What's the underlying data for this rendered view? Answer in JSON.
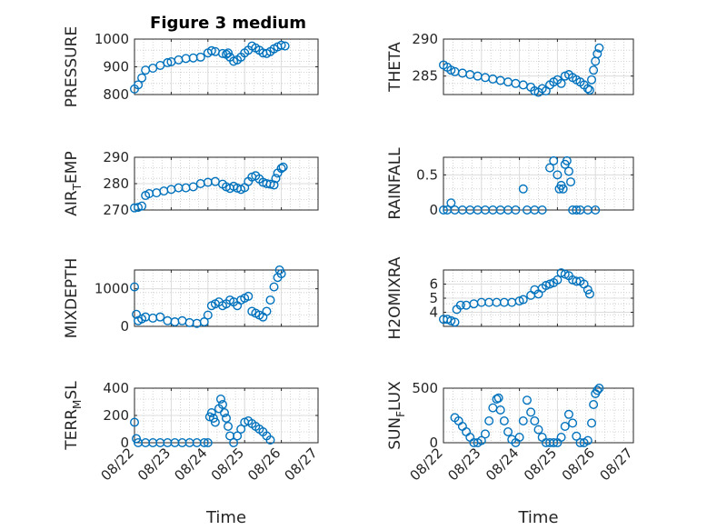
{
  "figure_title": "Figure 3 medium",
  "chart_data": [
    {
      "type": "scatter",
      "id": "pressure",
      "title": "Figure 3 medium",
      "ylabel": "PRESSURE",
      "ylim": [
        800,
        1000
      ],
      "yticks": [
        800,
        900,
        1000
      ],
      "xlim": [
        0,
        5
      ],
      "xtick_labels": [],
      "xlabel": "",
      "grid": true,
      "marker_color": "#0072BD",
      "points": [
        [
          0,
          820
        ],
        [
          0.1,
          835
        ],
        [
          0.2,
          860
        ],
        [
          0.3,
          888
        ],
        [
          0.5,
          895
        ],
        [
          0.7,
          905
        ],
        [
          0.9,
          915
        ],
        [
          1.0,
          918
        ],
        [
          1.2,
          925
        ],
        [
          1.4,
          930
        ],
        [
          1.6,
          932
        ],
        [
          1.8,
          935
        ],
        [
          2.0,
          950
        ],
        [
          2.1,
          958
        ],
        [
          2.2,
          955
        ],
        [
          2.4,
          948
        ],
        [
          2.5,
          945
        ],
        [
          2.55,
          950
        ],
        [
          2.6,
          935
        ],
        [
          2.7,
          920
        ],
        [
          2.8,
          925
        ],
        [
          2.9,
          935
        ],
        [
          3.0,
          950
        ],
        [
          3.1,
          960
        ],
        [
          3.2,
          975
        ],
        [
          3.3,
          968
        ],
        [
          3.4,
          960
        ],
        [
          3.5,
          950
        ],
        [
          3.6,
          948
        ],
        [
          3.7,
          955
        ],
        [
          3.8,
          965
        ],
        [
          3.9,
          972
        ],
        [
          4.0,
          978
        ],
        [
          4.1,
          975
        ]
      ]
    },
    {
      "type": "scatter",
      "id": "theta",
      "title": "",
      "ylabel": "THETA",
      "ylim": [
        282.5,
        290
      ],
      "yticks": [
        285,
        290
      ],
      "xlim": [
        0,
        5
      ],
      "xtick_labels": [],
      "xlabel": "",
      "grid": true,
      "marker_color": "#0072BD",
      "points": [
        [
          0,
          286.5
        ],
        [
          0.1,
          286.2
        ],
        [
          0.2,
          285.8
        ],
        [
          0.3,
          285.6
        ],
        [
          0.5,
          285.4
        ],
        [
          0.7,
          285.2
        ],
        [
          0.9,
          285.0
        ],
        [
          1.1,
          284.8
        ],
        [
          1.3,
          284.6
        ],
        [
          1.5,
          284.4
        ],
        [
          1.7,
          284.2
        ],
        [
          1.9,
          284.0
        ],
        [
          2.1,
          283.8
        ],
        [
          2.3,
          283.5
        ],
        [
          2.4,
          283.0
        ],
        [
          2.5,
          282.8
        ],
        [
          2.6,
          283.3
        ],
        [
          2.7,
          283.0
        ],
        [
          2.8,
          283.8
        ],
        [
          2.9,
          284.2
        ],
        [
          3.0,
          284.5
        ],
        [
          3.1,
          284.0
        ],
        [
          3.2,
          285.0
        ],
        [
          3.3,
          285.2
        ],
        [
          3.4,
          284.8
        ],
        [
          3.5,
          284.5
        ],
        [
          3.6,
          284.2
        ],
        [
          3.7,
          283.8
        ],
        [
          3.8,
          283.3
        ],
        [
          3.85,
          283.1
        ],
        [
          3.9,
          284.5
        ],
        [
          3.95,
          285.8
        ],
        [
          4.0,
          287.0
        ],
        [
          4.05,
          288.0
        ],
        [
          4.1,
          288.8
        ]
      ]
    },
    {
      "type": "scatter",
      "id": "airtemp",
      "title": "",
      "ylabel": "AIR",
      "ylabel_sub": "T",
      "ylabel_rest": "EMP",
      "ylim": [
        270,
        290
      ],
      "yticks": [
        270,
        280,
        290
      ],
      "xlim": [
        0,
        5
      ],
      "xtick_labels": [],
      "xlabel": "",
      "grid": true,
      "marker_color": "#0072BD",
      "points": [
        [
          0,
          270.8
        ],
        [
          0.1,
          271.0
        ],
        [
          0.2,
          271.5
        ],
        [
          0.3,
          275.5
        ],
        [
          0.4,
          276.2
        ],
        [
          0.6,
          276.5
        ],
        [
          0.8,
          277.2
        ],
        [
          1.0,
          277.8
        ],
        [
          1.2,
          278.4
        ],
        [
          1.4,
          278.4
        ],
        [
          1.6,
          278.8
        ],
        [
          1.8,
          280.0
        ],
        [
          2.0,
          280.5
        ],
        [
          2.2,
          280.8
        ],
        [
          2.4,
          279.8
        ],
        [
          2.5,
          278.8
        ],
        [
          2.6,
          278.2
        ],
        [
          2.7,
          279.0
        ],
        [
          2.8,
          278.3
        ],
        [
          2.9,
          277.8
        ],
        [
          3.0,
          278.5
        ],
        [
          3.1,
          280.8
        ],
        [
          3.2,
          282.5
        ],
        [
          3.3,
          283.0
        ],
        [
          3.4,
          281.8
        ],
        [
          3.5,
          280.5
        ],
        [
          3.6,
          280.0
        ],
        [
          3.7,
          279.8
        ],
        [
          3.8,
          279.5
        ],
        [
          3.85,
          282.0
        ],
        [
          3.9,
          284.0
        ],
        [
          4.0,
          285.8
        ],
        [
          4.05,
          286.3
        ]
      ]
    },
    {
      "type": "scatter",
      "id": "rainfall",
      "title": "",
      "ylabel": "RAINFALL",
      "ylim": [
        0,
        0.75
      ],
      "yticks": [
        0,
        0.5
      ],
      "xlim": [
        0,
        5
      ],
      "xtick_labels": [],
      "xlabel": "",
      "grid": true,
      "marker_color": "#0072BD",
      "points": [
        [
          0,
          0
        ],
        [
          0.1,
          0
        ],
        [
          0.2,
          0.1
        ],
        [
          0.3,
          0
        ],
        [
          0.5,
          0
        ],
        [
          0.7,
          0
        ],
        [
          0.9,
          0
        ],
        [
          1.1,
          0
        ],
        [
          1.3,
          0
        ],
        [
          1.5,
          0
        ],
        [
          1.7,
          0
        ],
        [
          1.9,
          0
        ],
        [
          2.1,
          0.3
        ],
        [
          2.2,
          0
        ],
        [
          2.4,
          0
        ],
        [
          2.6,
          0
        ],
        [
          2.8,
          0.6
        ],
        [
          2.9,
          0.7
        ],
        [
          3.0,
          0.5
        ],
        [
          3.05,
          0.3
        ],
        [
          3.1,
          0.35
        ],
        [
          3.15,
          0.3
        ],
        [
          3.2,
          0.65
        ],
        [
          3.25,
          0.7
        ],
        [
          3.3,
          0.55
        ],
        [
          3.35,
          0.4
        ],
        [
          3.4,
          0
        ],
        [
          3.5,
          0
        ],
        [
          3.6,
          0
        ],
        [
          3.8,
          0
        ],
        [
          4.0,
          0
        ]
      ]
    },
    {
      "type": "scatter",
      "id": "mixdepth",
      "title": "",
      "ylabel": "MIXDEPTH",
      "ylim": [
        0,
        1500
      ],
      "yticks": [
        0,
        1000
      ],
      "xlim": [
        0,
        5
      ],
      "xtick_labels": [],
      "xlabel": "",
      "grid": true,
      "marker_color": "#0072BD",
      "points": [
        [
          0,
          1050
        ],
        [
          0.05,
          320
        ],
        [
          0.1,
          150
        ],
        [
          0.2,
          200
        ],
        [
          0.3,
          250
        ],
        [
          0.5,
          220
        ],
        [
          0.7,
          250
        ],
        [
          0.9,
          150
        ],
        [
          1.1,
          120
        ],
        [
          1.3,
          150
        ],
        [
          1.5,
          100
        ],
        [
          1.7,
          80
        ],
        [
          1.9,
          120
        ],
        [
          2.0,
          300
        ],
        [
          2.1,
          550
        ],
        [
          2.2,
          600
        ],
        [
          2.3,
          650
        ],
        [
          2.4,
          550
        ],
        [
          2.5,
          600
        ],
        [
          2.6,
          700
        ],
        [
          2.7,
          650
        ],
        [
          2.8,
          550
        ],
        [
          2.9,
          700
        ],
        [
          3.0,
          750
        ],
        [
          3.1,
          800
        ],
        [
          3.2,
          400
        ],
        [
          3.3,
          350
        ],
        [
          3.4,
          300
        ],
        [
          3.5,
          250
        ],
        [
          3.6,
          400
        ],
        [
          3.7,
          700
        ],
        [
          3.8,
          1050
        ],
        [
          3.9,
          1300
        ],
        [
          3.95,
          1500
        ],
        [
          4.0,
          1400
        ]
      ]
    },
    {
      "type": "scatter",
      "id": "h2omixra",
      "title": "",
      "ylabel": "H2OMIXRA",
      "ylim": [
        3,
        7
      ],
      "yticks": [
        4,
        5,
        6
      ],
      "xlim": [
        0,
        5
      ],
      "xtick_labels": [],
      "xlabel": "",
      "grid": true,
      "marker_color": "#0072BD",
      "points": [
        [
          0,
          3.5
        ],
        [
          0.1,
          3.5
        ],
        [
          0.2,
          3.4
        ],
        [
          0.3,
          3.3
        ],
        [
          0.35,
          4.2
        ],
        [
          0.45,
          4.5
        ],
        [
          0.6,
          4.5
        ],
        [
          0.8,
          4.6
        ],
        [
          1.0,
          4.7
        ],
        [
          1.2,
          4.7
        ],
        [
          1.4,
          4.7
        ],
        [
          1.6,
          4.7
        ],
        [
          1.8,
          4.7
        ],
        [
          2.0,
          4.8
        ],
        [
          2.1,
          4.9
        ],
        [
          2.3,
          5.2
        ],
        [
          2.4,
          5.6
        ],
        [
          2.5,
          5.3
        ],
        [
          2.6,
          5.7
        ],
        [
          2.7,
          5.9
        ],
        [
          2.8,
          6.0
        ],
        [
          2.9,
          6.1
        ],
        [
          3.0,
          6.3
        ],
        [
          3.1,
          6.8
        ],
        [
          3.2,
          6.7
        ],
        [
          3.3,
          6.6
        ],
        [
          3.4,
          6.3
        ],
        [
          3.5,
          6.2
        ],
        [
          3.6,
          6.2
        ],
        [
          3.7,
          6.0
        ],
        [
          3.8,
          5.6
        ],
        [
          3.85,
          5.3
        ]
      ]
    },
    {
      "type": "scatter",
      "id": "terrmsl",
      "title": "",
      "ylabel": "TERR",
      "ylabel_sub": "M",
      "ylabel_rest": "SL",
      "ylim": [
        0,
        400
      ],
      "yticks": [
        0,
        200,
        400
      ],
      "xlim": [
        0,
        5
      ],
      "xtick_labels": [
        "08/22",
        "08/23",
        "08/24",
        "08/25",
        "08/26",
        "08/27"
      ],
      "xlabel": "Time",
      "grid": true,
      "marker_color": "#0072BD",
      "points": [
        [
          0,
          150
        ],
        [
          0.05,
          30
        ],
        [
          0.1,
          0
        ],
        [
          0.3,
          0
        ],
        [
          0.5,
          0
        ],
        [
          0.7,
          0
        ],
        [
          0.9,
          0
        ],
        [
          1.1,
          0
        ],
        [
          1.3,
          0
        ],
        [
          1.5,
          0
        ],
        [
          1.7,
          0
        ],
        [
          1.9,
          0
        ],
        [
          2.0,
          0
        ],
        [
          2.05,
          190
        ],
        [
          2.1,
          220
        ],
        [
          2.15,
          180
        ],
        [
          2.2,
          150
        ],
        [
          2.3,
          250
        ],
        [
          2.35,
          320
        ],
        [
          2.4,
          280
        ],
        [
          2.45,
          220
        ],
        [
          2.5,
          180
        ],
        [
          2.55,
          120
        ],
        [
          2.6,
          50
        ],
        [
          2.7,
          0
        ],
        [
          2.8,
          50
        ],
        [
          2.9,
          100
        ],
        [
          3.0,
          150
        ],
        [
          3.1,
          160
        ],
        [
          3.2,
          140
        ],
        [
          3.3,
          120
        ],
        [
          3.4,
          100
        ],
        [
          3.5,
          80
        ],
        [
          3.6,
          50
        ],
        [
          3.7,
          20
        ]
      ]
    },
    {
      "type": "scatter",
      "id": "sunflux",
      "title": "",
      "ylabel": "SUN",
      "ylabel_sub": "F",
      "ylabel_rest": "LUX",
      "ylim": [
        0,
        500
      ],
      "yticks": [
        0,
        500
      ],
      "xlim": [
        0,
        5
      ],
      "xtick_labels": [
        "08/22",
        "08/23",
        "08/24",
        "08/25",
        "08/26",
        "08/27"
      ],
      "xlabel": "Time",
      "grid": true,
      "marker_color": "#0072BD",
      "points": [
        [
          0.3,
          230
        ],
        [
          0.4,
          200
        ],
        [
          0.5,
          150
        ],
        [
          0.6,
          100
        ],
        [
          0.7,
          50
        ],
        [
          0.8,
          0
        ],
        [
          0.9,
          0
        ],
        [
          1.0,
          20
        ],
        [
          1.1,
          80
        ],
        [
          1.2,
          200
        ],
        [
          1.3,
          320
        ],
        [
          1.4,
          400
        ],
        [
          1.45,
          410
        ],
        [
          1.5,
          300
        ],
        [
          1.6,
          200
        ],
        [
          1.7,
          100
        ],
        [
          1.8,
          30
        ],
        [
          1.9,
          0
        ],
        [
          2.0,
          50
        ],
        [
          2.1,
          200
        ],
        [
          2.2,
          390
        ],
        [
          2.3,
          280
        ],
        [
          2.4,
          200
        ],
        [
          2.5,
          120
        ],
        [
          2.6,
          50
        ],
        [
          2.7,
          0
        ],
        [
          2.8,
          0
        ],
        [
          2.9,
          0
        ],
        [
          3.0,
          0
        ],
        [
          3.1,
          50
        ],
        [
          3.2,
          150
        ],
        [
          3.3,
          260
        ],
        [
          3.4,
          180
        ],
        [
          3.5,
          60
        ],
        [
          3.6,
          0
        ],
        [
          3.7,
          0
        ],
        [
          3.8,
          20
        ],
        [
          3.9,
          180
        ],
        [
          3.95,
          350
        ],
        [
          4.0,
          450
        ],
        [
          4.05,
          480
        ],
        [
          4.1,
          500
        ]
      ]
    }
  ]
}
